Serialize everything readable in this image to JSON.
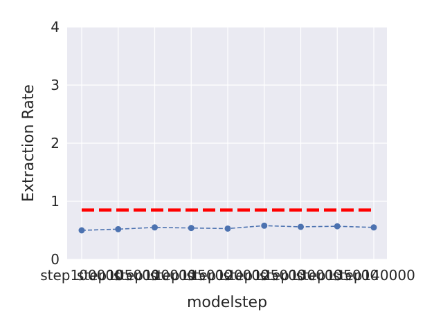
{
  "chart_data": {
    "type": "line",
    "title": "",
    "xlabel": "modelstep",
    "ylabel": "Extraction Rate",
    "categories": [
      "step100000",
      "step105000",
      "step110000",
      "step115000",
      "step120000",
      "step125000",
      "step130000",
      "step135000",
      "step140000"
    ],
    "series": [
      {
        "values": [
          0.5,
          0.52,
          0.55,
          0.54,
          0.53,
          0.58,
          0.56,
          0.57,
          0.55
        ],
        "color": "#4c72b0",
        "style": "dashed-marker"
      }
    ],
    "reference_line": {
      "value": 0.85,
      "color": "#ff0000",
      "style": "dashed"
    },
    "ylim": [
      0,
      4
    ],
    "yticks": [
      "0",
      "1",
      "2",
      "3",
      "4"
    ],
    "grid": true,
    "background": "#eaeaf2"
  }
}
